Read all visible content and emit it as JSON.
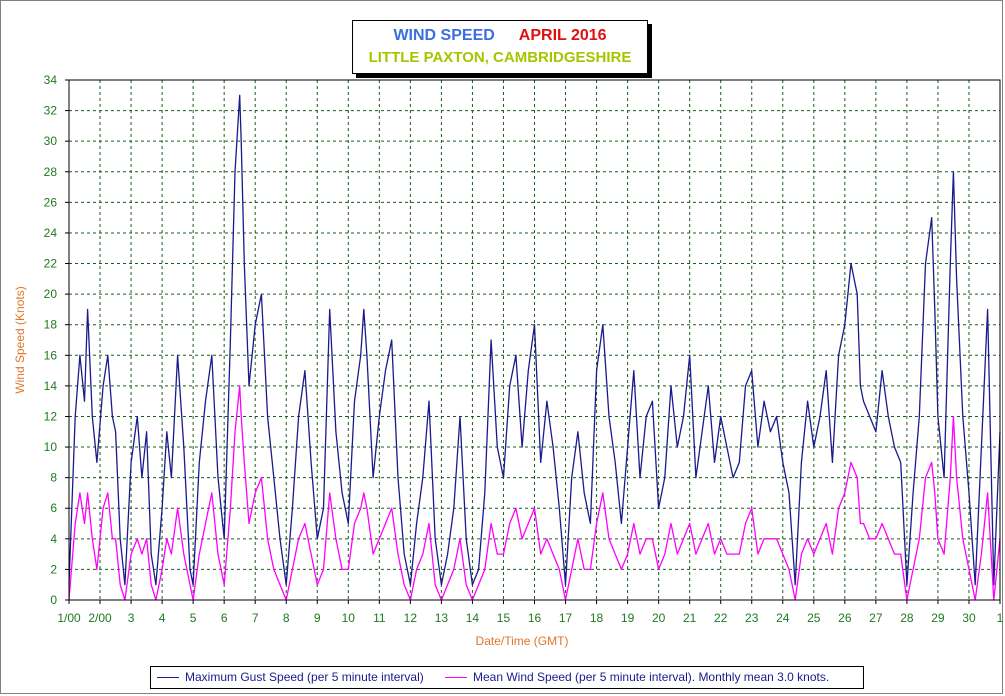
{
  "chart_data": {
    "type": "line",
    "title": "WIND SPEED",
    "title_date": "APRIL 2016",
    "subtitle": "LITTLE PAXTON, CAMBRIDGESHIRE",
    "xlabel": "Date/Time (GMT)",
    "ylabel": "Wind Speed (Knots)",
    "ylim": [
      0,
      34
    ],
    "yticks": [
      "0",
      "2",
      "4",
      "6",
      "8",
      "10",
      "12",
      "14",
      "16",
      "18",
      "20",
      "22",
      "24",
      "26",
      "28",
      "30",
      "32",
      "34"
    ],
    "xlim": [
      1,
      31
    ],
    "xticks": [
      "1/00",
      "2/00",
      "3",
      "4",
      "5",
      "6",
      "7",
      "8",
      "9",
      "10",
      "11",
      "12",
      "13",
      "14",
      "15",
      "16",
      "17",
      "18",
      "19",
      "20",
      "21",
      "22",
      "23",
      "24",
      "25",
      "26",
      "27",
      "28",
      "29",
      "30",
      "1"
    ],
    "grid": true,
    "legend_position": "bottom",
    "series": [
      {
        "name": "Maximum Gust Speed (per 5 minute interval)",
        "color": "#1a1a8c",
        "x": [
          1.0,
          1.2,
          1.35,
          1.5,
          1.6,
          1.75,
          1.9,
          2.1,
          2.25,
          2.4,
          2.5,
          2.65,
          2.8,
          3.0,
          3.2,
          3.35,
          3.5,
          3.65,
          3.8,
          4.0,
          4.15,
          4.3,
          4.5,
          4.7,
          4.9,
          5.0,
          5.2,
          5.4,
          5.6,
          5.8,
          6.0,
          6.2,
          6.35,
          6.5,
          6.55,
          6.65,
          6.8,
          7.0,
          7.2,
          7.4,
          7.6,
          7.8,
          8.0,
          8.2,
          8.4,
          8.6,
          8.8,
          9.0,
          9.2,
          9.4,
          9.6,
          9.8,
          10.0,
          10.2,
          10.4,
          10.5,
          10.6,
          10.8,
          11.0,
          11.2,
          11.4,
          11.6,
          11.8,
          12.0,
          12.2,
          12.4,
          12.6,
          12.8,
          13.0,
          13.2,
          13.4,
          13.6,
          13.8,
          14.0,
          14.2,
          14.4,
          14.6,
          14.8,
          15.0,
          15.2,
          15.4,
          15.6,
          15.8,
          16.0,
          16.2,
          16.4,
          16.6,
          16.8,
          17.0,
          17.2,
          17.4,
          17.6,
          17.8,
          18.0,
          18.2,
          18.4,
          18.6,
          18.8,
          19.0,
          19.2,
          19.4,
          19.6,
          19.8,
          20.0,
          20.2,
          20.4,
          20.6,
          20.8,
          21.0,
          21.2,
          21.4,
          21.6,
          21.8,
          22.0,
          22.2,
          22.4,
          22.6,
          22.8,
          23.0,
          23.2,
          23.4,
          23.6,
          23.8,
          24.0,
          24.2,
          24.4,
          24.6,
          24.8,
          25.0,
          25.2,
          25.4,
          25.6,
          25.8,
          26.0,
          26.2,
          26.4,
          26.5,
          26.6,
          26.8,
          27.0,
          27.2,
          27.4,
          27.6,
          27.8,
          28.0,
          28.2,
          28.4,
          28.6,
          28.8,
          28.9,
          29.0,
          29.2,
          29.4,
          29.5,
          29.6,
          29.8,
          30.0,
          30.2,
          30.4,
          30.6,
          30.8,
          31.0
        ],
        "values": [
          1,
          12,
          16,
          13,
          19,
          12,
          9,
          14,
          16,
          12,
          11,
          4,
          1,
          9,
          12,
          8,
          11,
          3,
          1,
          6,
          11,
          8,
          16,
          10,
          2,
          1,
          9,
          13,
          16,
          8,
          4,
          17,
          28,
          33,
          30,
          22,
          14,
          18,
          20,
          12,
          8,
          4,
          1,
          6,
          12,
          15,
          9,
          4,
          6,
          19,
          11,
          7,
          5,
          13,
          16,
          19,
          16,
          8,
          12,
          15,
          17,
          8,
          3,
          1,
          5,
          8,
          13,
          4,
          1,
          3,
          6,
          12,
          4,
          1,
          2,
          7,
          17,
          10,
          8,
          14,
          16,
          10,
          15,
          18,
          9,
          13,
          10,
          6,
          1,
          8,
          11,
          7,
          5,
          15,
          18,
          12,
          9,
          5,
          10,
          15,
          8,
          12,
          13,
          6,
          8,
          14,
          10,
          12,
          16,
          8,
          11,
          14,
          9,
          12,
          10,
          8,
          9,
          14,
          15,
          10,
          13,
          11,
          12,
          9,
          7,
          1,
          9,
          13,
          10,
          12,
          15,
          9,
          16,
          18,
          22,
          20,
          14,
          13,
          12,
          11,
          15,
          12,
          10,
          9,
          1,
          7,
          12,
          22,
          25,
          19,
          12,
          8,
          22,
          28,
          21,
          12,
          7,
          1,
          10,
          19,
          1,
          11
        ],
        "description_visible": true
      },
      {
        "name": "Mean Wind Speed (per 5 minute interval). Monthly mean 3.0 knots.",
        "color": "#ff00ff",
        "x": [
          1.0,
          1.2,
          1.35,
          1.5,
          1.6,
          1.75,
          1.9,
          2.1,
          2.25,
          2.4,
          2.5,
          2.65,
          2.8,
          3.0,
          3.2,
          3.35,
          3.5,
          3.65,
          3.8,
          4.0,
          4.15,
          4.3,
          4.5,
          4.7,
          4.9,
          5.0,
          5.2,
          5.4,
          5.6,
          5.8,
          6.0,
          6.2,
          6.35,
          6.5,
          6.55,
          6.65,
          6.8,
          7.0,
          7.2,
          7.4,
          7.6,
          7.8,
          8.0,
          8.2,
          8.4,
          8.6,
          8.8,
          9.0,
          9.2,
          9.4,
          9.6,
          9.8,
          10.0,
          10.2,
          10.4,
          10.5,
          10.6,
          10.8,
          11.0,
          11.2,
          11.4,
          11.6,
          11.8,
          12.0,
          12.2,
          12.4,
          12.6,
          12.8,
          13.0,
          13.2,
          13.4,
          13.6,
          13.8,
          14.0,
          14.2,
          14.4,
          14.6,
          14.8,
          15.0,
          15.2,
          15.4,
          15.6,
          15.8,
          16.0,
          16.2,
          16.4,
          16.6,
          16.8,
          17.0,
          17.2,
          17.4,
          17.6,
          17.8,
          18.0,
          18.2,
          18.4,
          18.6,
          18.8,
          19.0,
          19.2,
          19.4,
          19.6,
          19.8,
          20.0,
          20.2,
          20.4,
          20.6,
          20.8,
          21.0,
          21.2,
          21.4,
          21.6,
          21.8,
          22.0,
          22.2,
          22.4,
          22.6,
          22.8,
          23.0,
          23.2,
          23.4,
          23.6,
          23.8,
          24.0,
          24.2,
          24.4,
          24.6,
          24.8,
          25.0,
          25.2,
          25.4,
          25.6,
          25.8,
          26.0,
          26.2,
          26.4,
          26.5,
          26.6,
          26.8,
          27.0,
          27.2,
          27.4,
          27.6,
          27.8,
          28.0,
          28.2,
          28.4,
          28.6,
          28.8,
          28.9,
          29.0,
          29.2,
          29.4,
          29.5,
          29.6,
          29.8,
          30.0,
          30.2,
          30.4,
          30.6,
          30.8,
          31.0
        ],
        "values": [
          0,
          5,
          7,
          5,
          7,
          4,
          2,
          6,
          7,
          4,
          4,
          1,
          0,
          3,
          4,
          3,
          4,
          1,
          0,
          2,
          4,
          3,
          6,
          3,
          1,
          0,
          3,
          5,
          7,
          3,
          1,
          6,
          11,
          14,
          12,
          9,
          5,
          7,
          8,
          4,
          2,
          1,
          0,
          2,
          4,
          5,
          3,
          1,
          2,
          7,
          4,
          2,
          2,
          5,
          6,
          7,
          6,
          3,
          4,
          5,
          6,
          3,
          1,
          0,
          2,
          3,
          5,
          1,
          0,
          1,
          2,
          4,
          1,
          0,
          1,
          2,
          5,
          3,
          3,
          5,
          6,
          4,
          5,
          6,
          3,
          4,
          3,
          2,
          0,
          2,
          4,
          2,
          2,
          5,
          7,
          4,
          3,
          2,
          3,
          5,
          3,
          4,
          4,
          2,
          3,
          5,
          3,
          4,
          5,
          3,
          4,
          5,
          3,
          4,
          3,
          3,
          3,
          5,
          6,
          3,
          4,
          4,
          4,
          3,
          2,
          0,
          3,
          4,
          3,
          4,
          5,
          3,
          6,
          7,
          9,
          8,
          5,
          5,
          4,
          4,
          5,
          4,
          3,
          3,
          0,
          2,
          4,
          8,
          9,
          7,
          4,
          3,
          8,
          12,
          8,
          4,
          2,
          0,
          3,
          7,
          0,
          4
        ]
      }
    ]
  }
}
